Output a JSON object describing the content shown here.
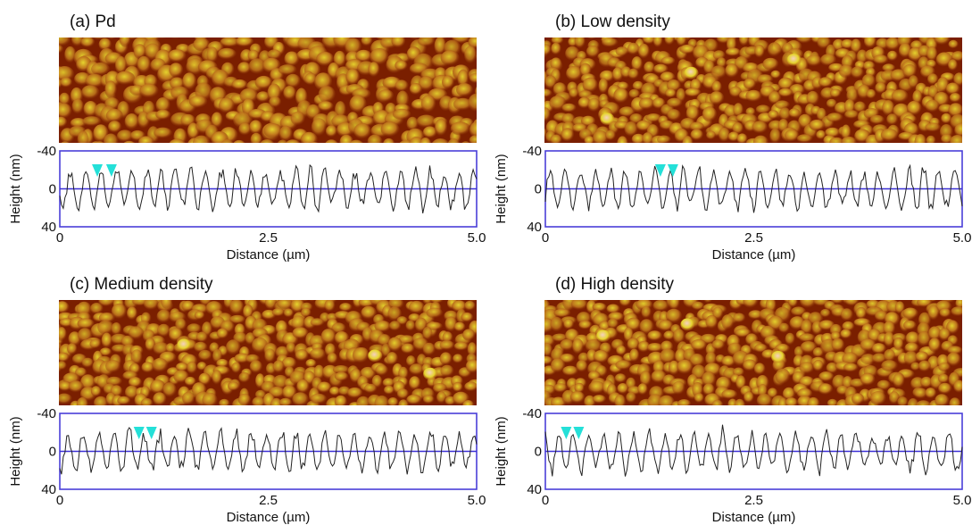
{
  "colors": {
    "afm_dark": "#7a1f00",
    "afm_mid": "#c0761d",
    "afm_light": "#e6d52e",
    "afm_highlight": "#f5d0c0",
    "zero_line": "#3a2fd6",
    "frame": "#4a3fd8",
    "profile": "#222222",
    "markers": "#24e0d8"
  },
  "chart_data": [
    {
      "type": "line",
      "title": "(a) Pd",
      "xlabel": "Distance (µm)",
      "ylabel": "Height (nm)",
      "xlim": [
        0,
        5.0
      ],
      "ylim": [
        -40,
        40
      ],
      "x_ticks": [
        "0",
        "2.5",
        "5.0"
      ],
      "y_ticks": [
        "-40",
        "0",
        "40"
      ],
      "zero_line": true,
      "markers_x": [
        0.45,
        0.62
      ],
      "seed": 11,
      "series": [
        {
          "x": [
            0,
            5.0
          ],
          "y": [
            0,
            0
          ]
        }
      ]
    },
    {
      "type": "line",
      "title": "(b) Low density",
      "xlabel": "Distance (µm)",
      "ylabel": "Height (nm)",
      "xlim": [
        0,
        5.0
      ],
      "ylim": [
        -40,
        40
      ],
      "x_ticks": [
        "0",
        "2.5",
        "5.0"
      ],
      "y_ticks": [
        "-40",
        "0",
        "40"
      ],
      "zero_line": true,
      "markers_x": [
        1.38,
        1.53
      ],
      "seed": 23,
      "series": [
        {
          "x": [
            0,
            5.0
          ],
          "y": [
            0,
            0
          ]
        }
      ]
    },
    {
      "type": "line",
      "title": "(c) Medium density",
      "xlabel": "Distance (µm)",
      "ylabel": "Height (nm)",
      "xlim": [
        0,
        5.0
      ],
      "ylim": [
        -40,
        40
      ],
      "x_ticks": [
        "0",
        "2.5",
        "5.0"
      ],
      "y_ticks": [
        "-40",
        "0",
        "40"
      ],
      "zero_line": true,
      "markers_x": [
        0.95,
        1.1
      ],
      "seed": 37,
      "series": [
        {
          "x": [
            0,
            5.0
          ],
          "y": [
            0,
            0
          ]
        }
      ]
    },
    {
      "type": "line",
      "title": "(d) High density",
      "xlabel": "Distance (µm)",
      "ylabel": "Height (nm)",
      "xlim": [
        0,
        5.0
      ],
      "ylim": [
        -40,
        40
      ],
      "x_ticks": [
        "0",
        "2.5",
        "5.0"
      ],
      "y_ticks": [
        "-40",
        "0",
        "40"
      ],
      "zero_line": true,
      "markers_x": [
        0.25,
        0.4
      ],
      "seed": 53,
      "series": [
        {
          "x": [
            0,
            5.0
          ],
          "y": [
            0,
            0
          ]
        }
      ]
    }
  ]
}
